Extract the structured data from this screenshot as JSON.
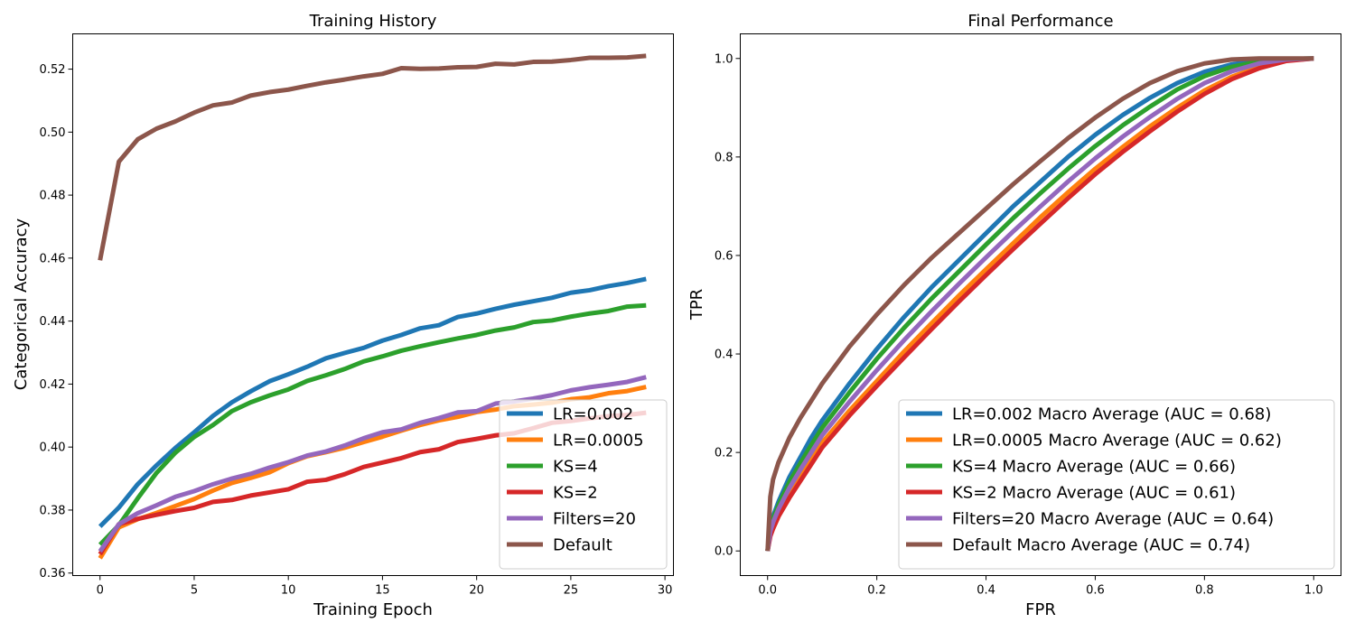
{
  "chart_data": [
    {
      "type": "line",
      "title": "Training History",
      "xlabel": "Training Epoch",
      "ylabel": "Categorical Accuracy",
      "xlim": [
        -1.45,
        30.45
      ],
      "ylim": [
        0.3592,
        0.5312
      ],
      "xticks": [
        0,
        5,
        10,
        15,
        20,
        25,
        30
      ],
      "xtick_labels": [
        "0",
        "5",
        "10",
        "15",
        "20",
        "25",
        "30"
      ],
      "yticks": [
        0.36,
        0.38,
        0.4,
        0.42,
        0.44,
        0.46,
        0.48,
        0.5,
        0.52
      ],
      "ytick_labels": [
        "0.36",
        "0.38",
        "0.40",
        "0.42",
        "0.44",
        "0.46",
        "0.48",
        "0.50",
        "0.52"
      ],
      "grid": false,
      "legend_position": "lower right",
      "x": [
        0,
        1,
        2,
        3,
        4,
        5,
        6,
        7,
        8,
        9,
        10,
        11,
        12,
        13,
        14,
        15,
        16,
        17,
        18,
        19,
        20,
        21,
        22,
        23,
        24,
        25,
        26,
        27,
        28,
        29
      ],
      "series": [
        {
          "name": "LR=0.002",
          "color": "#1f77b4",
          "values": [
            0.3748,
            0.3808,
            0.3882,
            0.3942,
            0.3997,
            0.4047,
            0.4099,
            0.4142,
            0.4177,
            0.4209,
            0.4231,
            0.4255,
            0.4282,
            0.4299,
            0.4315,
            0.4338,
            0.4356,
            0.4377,
            0.4387,
            0.4413,
            0.4424,
            0.4439,
            0.4452,
            0.4463,
            0.4474,
            0.449,
            0.4498,
            0.4511,
            0.4521,
            0.4534
          ]
        },
        {
          "name": "LR=0.0005",
          "color": "#ff7f0e",
          "values": [
            0.3647,
            0.3745,
            0.3771,
            0.3791,
            0.3813,
            0.3835,
            0.3862,
            0.3886,
            0.3902,
            0.392,
            0.3949,
            0.3971,
            0.3984,
            0.3998,
            0.4016,
            0.4033,
            0.4052,
            0.407,
            0.4085,
            0.4096,
            0.4111,
            0.4119,
            0.413,
            0.4135,
            0.4141,
            0.4152,
            0.4158,
            0.4171,
            0.4178,
            0.4191
          ]
        },
        {
          "name": "KS=4",
          "color": "#2ca02c",
          "values": [
            0.369,
            0.3752,
            0.3837,
            0.3918,
            0.3982,
            0.4032,
            0.407,
            0.4114,
            0.4142,
            0.4164,
            0.4183,
            0.421,
            0.4228,
            0.4248,
            0.4272,
            0.4288,
            0.4306,
            0.432,
            0.4333,
            0.4345,
            0.4356,
            0.437,
            0.438,
            0.4397,
            0.4402,
            0.4414,
            0.4424,
            0.4432,
            0.4446,
            0.445
          ]
        },
        {
          "name": "KS=2",
          "color": "#d62728",
          "values": [
            0.366,
            0.3755,
            0.3772,
            0.3785,
            0.3797,
            0.3807,
            0.3826,
            0.3832,
            0.3846,
            0.3856,
            0.3866,
            0.389,
            0.3896,
            0.3914,
            0.3937,
            0.3951,
            0.3965,
            0.3984,
            0.3993,
            0.4016,
            0.4026,
            0.4037,
            0.4044,
            0.406,
            0.4077,
            0.4083,
            0.4091,
            0.4098,
            0.4102,
            0.4109
          ]
        },
        {
          "name": "Filters=20",
          "color": "#9467bd",
          "values": [
            0.3669,
            0.3755,
            0.379,
            0.3815,
            0.3842,
            0.386,
            0.3882,
            0.39,
            0.3915,
            0.3935,
            0.3952,
            0.3973,
            0.3986,
            0.4005,
            0.4028,
            0.4047,
            0.4056,
            0.4077,
            0.4092,
            0.411,
            0.4114,
            0.4138,
            0.4145,
            0.4154,
            0.4165,
            0.418,
            0.419,
            0.4198,
            0.4207,
            0.4222
          ]
        },
        {
          "name": "Default",
          "color": "#8c564b",
          "values": [
            0.4593,
            0.4906,
            0.4977,
            0.5011,
            0.5034,
            0.5062,
            0.5085,
            0.5094,
            0.5116,
            0.5127,
            0.5135,
            0.5147,
            0.5158,
            0.5167,
            0.5177,
            0.5185,
            0.5203,
            0.5201,
            0.5202,
            0.5206,
            0.5207,
            0.5217,
            0.5215,
            0.5223,
            0.5224,
            0.5229,
            0.5236,
            0.5236,
            0.5237,
            0.5242
          ]
        }
      ]
    },
    {
      "type": "line",
      "title": "Final Performance",
      "xlabel": "FPR",
      "ylabel": "TPR",
      "xlim": [
        -0.05,
        1.05
      ],
      "ylim": [
        -0.05,
        1.05
      ],
      "xticks": [
        0,
        0.2,
        0.4,
        0.6,
        0.8,
        1.0
      ],
      "xtick_labels": [
        "0.0",
        "0.2",
        "0.4",
        "0.6",
        "0.8",
        "1.0"
      ],
      "yticks": [
        0,
        0.2,
        0.4,
        0.6,
        0.8,
        1.0
      ],
      "ytick_labels": [
        "0.0",
        "0.2",
        "0.4",
        "0.6",
        "0.8",
        "1.0"
      ],
      "grid": false,
      "legend_position": "lower right",
      "x": [
        0,
        0.005,
        0.01,
        0.02,
        0.04,
        0.06,
        0.08,
        0.1,
        0.15,
        0.2,
        0.25,
        0.3,
        0.35,
        0.4,
        0.45,
        0.5,
        0.55,
        0.6,
        0.65,
        0.7,
        0.75,
        0.8,
        0.85,
        0.9,
        0.95,
        1.0
      ],
      "series": [
        {
          "name": "LR=0.002 Macro Average (AUC = 0.68)",
          "color": "#1f77b4",
          "values": [
            0,
            0.05,
            0.07,
            0.1,
            0.15,
            0.19,
            0.23,
            0.265,
            0.34,
            0.41,
            0.475,
            0.535,
            0.59,
            0.645,
            0.7,
            0.75,
            0.8,
            0.845,
            0.885,
            0.92,
            0.95,
            0.973,
            0.988,
            0.996,
            0.999,
            1.0
          ]
        },
        {
          "name": "LR=0.0005 Macro Average (AUC = 0.62)",
          "color": "#ff7f0e",
          "values": [
            0,
            0.035,
            0.05,
            0.075,
            0.115,
            0.15,
            0.185,
            0.22,
            0.285,
            0.345,
            0.405,
            0.462,
            0.518,
            0.572,
            0.625,
            0.678,
            0.728,
            0.776,
            0.82,
            0.862,
            0.9,
            0.935,
            0.963,
            0.983,
            0.996,
            1.0
          ]
        },
        {
          "name": "KS=4 Macro Average (AUC = 0.66)",
          "color": "#2ca02c",
          "values": [
            0,
            0.045,
            0.065,
            0.093,
            0.14,
            0.178,
            0.215,
            0.25,
            0.322,
            0.39,
            0.453,
            0.512,
            0.567,
            0.622,
            0.676,
            0.727,
            0.776,
            0.822,
            0.864,
            0.902,
            0.937,
            0.964,
            0.983,
            0.994,
            0.999,
            1.0
          ]
        },
        {
          "name": "KS=2 Macro Average (AUC = 0.61)",
          "color": "#d62728",
          "values": [
            0,
            0.03,
            0.045,
            0.07,
            0.108,
            0.142,
            0.176,
            0.21,
            0.275,
            0.335,
            0.393,
            0.45,
            0.506,
            0.56,
            0.613,
            0.665,
            0.716,
            0.765,
            0.81,
            0.852,
            0.892,
            0.928,
            0.958,
            0.98,
            0.995,
            1.0
          ]
        },
        {
          "name": "Filters=20 Macro Average (AUC = 0.64)",
          "color": "#9467bd",
          "values": [
            0,
            0.04,
            0.058,
            0.085,
            0.128,
            0.165,
            0.2,
            0.235,
            0.303,
            0.367,
            0.428,
            0.486,
            0.542,
            0.596,
            0.649,
            0.7,
            0.75,
            0.797,
            0.841,
            0.881,
            0.918,
            0.95,
            0.974,
            0.99,
            0.998,
            1.0
          ]
        },
        {
          "name": "Default Macro Average (AUC = 0.74)",
          "color": "#8c564b",
          "values": [
            0,
            0.11,
            0.145,
            0.18,
            0.23,
            0.27,
            0.305,
            0.34,
            0.415,
            0.48,
            0.54,
            0.595,
            0.645,
            0.695,
            0.745,
            0.792,
            0.838,
            0.88,
            0.918,
            0.95,
            0.974,
            0.99,
            0.998,
            1.0,
            1.0,
            1.0
          ]
        }
      ]
    }
  ]
}
